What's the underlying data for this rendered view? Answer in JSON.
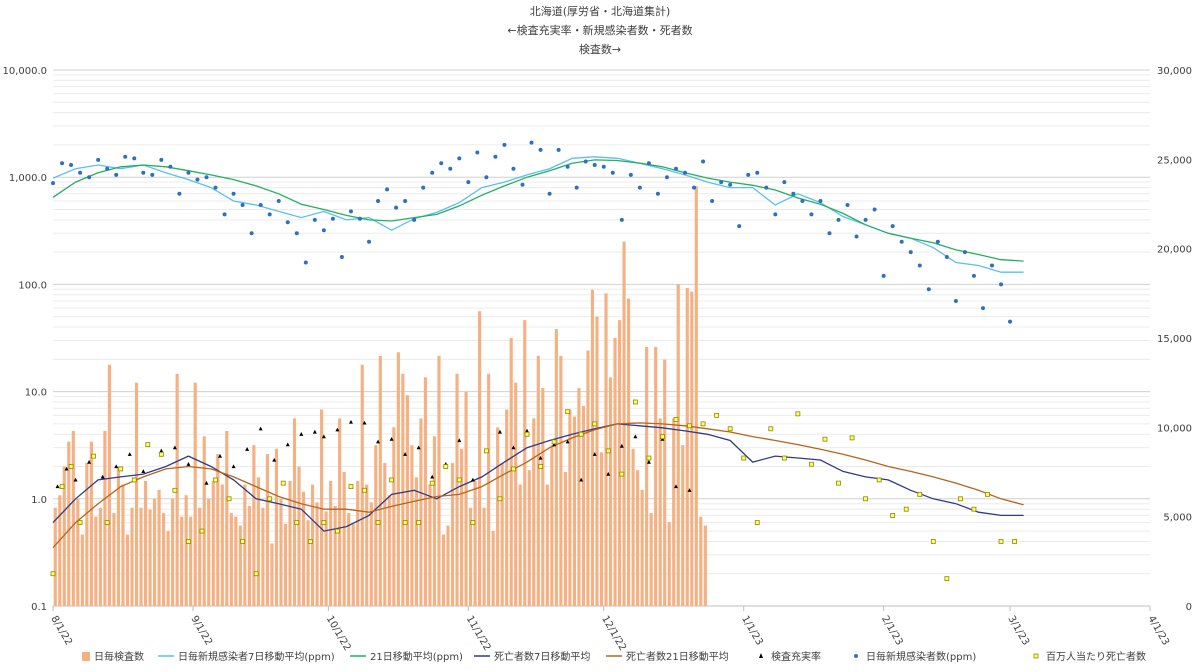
{
  "chart_data": {
    "type": "combo",
    "title_lines": [
      "北海道(厚労省・北海道集計)",
      "←検査充実率・新規感染者数・死者数",
      "検査数→"
    ],
    "y_left": {
      "scale": "log",
      "lim": [
        0.1,
        10000
      ],
      "ticks": [
        "0.1",
        "1.0",
        "10.0",
        "100.0",
        "1,000.0",
        "10,000.0"
      ],
      "tick_values": [
        0.1,
        1,
        10,
        100,
        1000,
        10000
      ]
    },
    "y_right": {
      "scale": "linear",
      "lim": [
        0,
        30000
      ],
      "ticks": [
        "0",
        "5,000",
        "10,000",
        "15,000",
        "20,000",
        "25,000",
        "30,000"
      ],
      "tick_values": [
        0,
        5000,
        10000,
        15000,
        20000,
        25000,
        30000
      ]
    },
    "x_axis": {
      "start": "2022-08-01",
      "end": "2023-04-01",
      "ticks": [
        "8/1/22",
        "9/1/22",
        "10/1/22",
        "11/1/22",
        "12/1/22",
        "1/1/23",
        "2/1/23",
        "3/1/23",
        "4/1/23"
      ],
      "tick_days": [
        0,
        31,
        61,
        92,
        122,
        153,
        184,
        212,
        243
      ]
    },
    "grid": true,
    "legend_position": "bottom",
    "series": [
      {
        "name": "日毎検査数",
        "type": "bar",
        "axis": "right",
        "color": "#f4b183",
        "values": [
          5500,
          6200,
          7800,
          9200,
          9800,
          6000,
          4000,
          8000,
          9200,
          5000,
          5500,
          9800,
          13500,
          5200,
          7800,
          6800,
          4000,
          5500,
          12500,
          5500,
          7000,
          5400,
          6000,
          6500,
          5200,
          4200,
          6000,
          13000,
          5000,
          6200,
          5000,
          12500,
          5500,
          9500,
          6000,
          7000,
          8500,
          6800,
          9800,
          5200,
          5000,
          4500,
          6800,
          5600,
          9000,
          7200,
          5500,
          8500,
          3500,
          8800,
          6000,
          4600,
          7000,
          10500,
          7800,
          6400,
          4800,
          6800,
          5800,
          11000,
          5300,
          7000,
          5600,
          10500,
          7500,
          5200,
          4600,
          7000,
          13500,
          6800,
          5800,
          9000,
          14000,
          8000,
          6200,
          10000,
          14200,
          13000,
          11800,
          9000,
          7200,
          10500,
          12800,
          6800,
          9500,
          14000,
          4000,
          4500,
          8000,
          13000,
          8800,
          12000,
          5500,
          7000,
          16500,
          5500,
          13000,
          4200,
          10000,
          8000,
          11000,
          15000,
          12500,
          6800,
          16000,
          7600,
          10500,
          14000,
          12200,
          6800,
          9000,
          15500,
          14000,
          7500,
          11000,
          10600,
          12200,
          11200,
          14300,
          17700,
          16200,
          8600,
          17500,
          12800,
          15000,
          16000,
          20400,
          17200,
          8800,
          7600,
          6500,
          14500,
          5200,
          14500,
          10500,
          13800,
          4700,
          10500,
          18000,
          9000,
          17800,
          17600,
          23500,
          5000,
          4500
        ]
      },
      {
        "name": "日毎新規感染者7日移動平均(ppm)",
        "type": "line",
        "axis": "left",
        "color": "#5bc0eb",
        "x": [
          0,
          5,
          10,
          15,
          20,
          25,
          30,
          35,
          40,
          45,
          50,
          55,
          60,
          65,
          70,
          75,
          80,
          85,
          90,
          95,
          100,
          105,
          110,
          115,
          120,
          125,
          130,
          135,
          140,
          145,
          150,
          155,
          160,
          165,
          170,
          175,
          180,
          185,
          190,
          195,
          200,
          205,
          210,
          215
        ],
        "values": [
          980,
          1200,
          1300,
          1200,
          1300,
          1100,
          950,
          800,
          600,
          550,
          480,
          420,
          480,
          400,
          420,
          320,
          410,
          470,
          580,
          800,
          900,
          1050,
          1200,
          1500,
          1550,
          1500,
          1350,
          1200,
          1050,
          900,
          800,
          800,
          550,
          700,
          580,
          430,
          360,
          300,
          270,
          220,
          160,
          150,
          130,
          130
        ]
      },
      {
        "name": "21日移動平均(ppm)",
        "type": "line",
        "axis": "left",
        "color": "#27ae60",
        "x": [
          0,
          5,
          10,
          15,
          20,
          25,
          30,
          35,
          40,
          45,
          50,
          55,
          60,
          65,
          70,
          75,
          80,
          85,
          90,
          95,
          100,
          105,
          110,
          115,
          120,
          125,
          130,
          135,
          140,
          145,
          150,
          155,
          160,
          165,
          170,
          175,
          180,
          185,
          190,
          195,
          200,
          205,
          210,
          215
        ],
        "values": [
          650,
          900,
          1100,
          1250,
          1300,
          1250,
          1150,
          1050,
          950,
          830,
          700,
          560,
          500,
          440,
          400,
          390,
          420,
          450,
          540,
          680,
          830,
          1000,
          1150,
          1350,
          1450,
          1430,
          1350,
          1250,
          1100,
          980,
          900,
          840,
          760,
          640,
          560,
          460,
          360,
          300,
          270,
          245,
          210,
          190,
          170,
          165
        ]
      },
      {
        "name": "死亡者数7日移動平均",
        "type": "line",
        "axis": "left",
        "color": "#2e3b8a",
        "x": [
          0,
          5,
          10,
          15,
          20,
          25,
          30,
          35,
          40,
          45,
          50,
          55,
          60,
          65,
          70,
          75,
          80,
          85,
          90,
          95,
          100,
          105,
          110,
          115,
          120,
          125,
          130,
          135,
          140,
          145,
          150,
          155,
          160,
          165,
          170,
          175,
          180,
          185,
          190,
          195,
          200,
          205,
          210,
          215
        ],
        "values": [
          0.6,
          1.0,
          1.5,
          1.6,
          1.7,
          2.0,
          2.5,
          2.0,
          1.5,
          1.0,
          0.9,
          0.8,
          0.5,
          0.55,
          0.7,
          1.1,
          1.2,
          1.0,
          1.3,
          1.6,
          2.2,
          3.0,
          3.5,
          4.0,
          4.5,
          5.0,
          4.8,
          4.6,
          4.3,
          4.0,
          3.5,
          2.2,
          2.5,
          2.4,
          2.3,
          1.8,
          1.6,
          1.5,
          1.2,
          1.0,
          0.9,
          0.75,
          0.7,
          0.7
        ]
      },
      {
        "name": "死亡者数21日移動平均",
        "type": "line",
        "axis": "left",
        "color": "#b5651d",
        "x": [
          0,
          5,
          10,
          15,
          20,
          25,
          30,
          35,
          40,
          45,
          50,
          55,
          60,
          65,
          70,
          75,
          80,
          85,
          90,
          95,
          100,
          105,
          110,
          115,
          120,
          125,
          130,
          135,
          140,
          145,
          150,
          155,
          160,
          165,
          170,
          175,
          180,
          185,
          190,
          195,
          200,
          205,
          210,
          215
        ],
        "values": [
          0.35,
          0.6,
          0.9,
          1.3,
          1.6,
          1.9,
          2.0,
          1.9,
          1.6,
          1.3,
          1.05,
          0.9,
          0.8,
          0.8,
          0.75,
          0.85,
          0.95,
          1.05,
          1.1,
          1.3,
          1.7,
          2.2,
          3.0,
          3.7,
          4.4,
          5.0,
          5.1,
          5.0,
          4.8,
          4.5,
          4.2,
          3.8,
          3.5,
          3.2,
          2.9,
          2.6,
          2.3,
          2.0,
          1.8,
          1.6,
          1.4,
          1.2,
          1.0,
          0.88
        ]
      },
      {
        "name": "検査充実率",
        "type": "scatter",
        "axis": "left",
        "color": "#000000",
        "marker": "triangle",
        "x": [
          1,
          3,
          5,
          8,
          11,
          14,
          17,
          20,
          24,
          27,
          30,
          34,
          37,
          40,
          43,
          46,
          49,
          52,
          55,
          58,
          60,
          63,
          66,
          69,
          72,
          75,
          78,
          81,
          84,
          87,
          90,
          93,
          96,
          99,
          102,
          105,
          108,
          111,
          114,
          117,
          120,
          123,
          126,
          129,
          132,
          135,
          138,
          141
        ],
        "values": [
          1.3,
          1.9,
          1.5,
          2.2,
          1.6,
          2.0,
          2.6,
          1.8,
          2.8,
          3.0,
          2.1,
          1.4,
          2.5,
          2.0,
          2.9,
          4.5,
          2.3,
          3.2,
          4.0,
          4.2,
          3.8,
          4.4,
          5.2,
          5.1,
          3.4,
          3.6,
          2.6,
          3.0,
          1.6,
          2.1,
          3.5,
          1.5,
          2.8,
          4.2,
          3.0,
          4.3,
          2.4,
          3.2,
          3.4,
          1.5,
          2.6,
          1.7,
          3.1,
          3.8,
          2.2,
          3.6,
          1.3,
          1.2
        ]
      },
      {
        "name": "日毎新規感染者数(ppm)",
        "type": "scatter",
        "axis": "left",
        "color": "#2f6fc1",
        "marker": "circle",
        "x": [
          0,
          2,
          4,
          6,
          8,
          10,
          12,
          14,
          16,
          18,
          20,
          22,
          24,
          26,
          28,
          30,
          32,
          34,
          36,
          38,
          40,
          42,
          44,
          46,
          48,
          50,
          52,
          54,
          56,
          58,
          60,
          62,
          64,
          66,
          68,
          70,
          72,
          74,
          76,
          78,
          80,
          82,
          84,
          86,
          88,
          90,
          92,
          94,
          96,
          98,
          100,
          102,
          104,
          106,
          108,
          110,
          112,
          114,
          116,
          118,
          120,
          122,
          124,
          126,
          128,
          130,
          132,
          134,
          136,
          138,
          140,
          142,
          144,
          146,
          148,
          150,
          152,
          154,
          156,
          158,
          160,
          162,
          164,
          166,
          168,
          170,
          172,
          174,
          176,
          178,
          180,
          182,
          184,
          186,
          188,
          190,
          192,
          194,
          196,
          198,
          200,
          202,
          204,
          206,
          208,
          210,
          212
        ],
        "values": [
          880,
          1350,
          1300,
          1100,
          1000,
          1450,
          1200,
          1050,
          1550,
          1500,
          1100,
          1050,
          1450,
          1250,
          700,
          1100,
          950,
          1000,
          800,
          450,
          700,
          550,
          300,
          550,
          450,
          600,
          380,
          300,
          160,
          400,
          320,
          410,
          180,
          480,
          410,
          250,
          600,
          770,
          520,
          600,
          400,
          800,
          1100,
          1350,
          1200,
          1500,
          900,
          1700,
          1000,
          1550,
          2000,
          1200,
          850,
          2100,
          1800,
          700,
          1800,
          1250,
          800,
          1400,
          1300,
          1250,
          1100,
          400,
          1050,
          800,
          1350,
          700,
          1000,
          1200,
          1100,
          800,
          1400,
          600,
          900,
          850,
          350,
          1050,
          1100,
          800,
          450,
          900,
          700,
          600,
          450,
          600,
          300,
          400,
          550,
          280,
          400,
          500,
          120,
          350,
          250,
          200,
          150,
          90,
          250,
          180,
          70,
          200,
          120,
          60,
          150,
          100,
          45
        ]
      },
      {
        "name": "百万人当たり死亡者数",
        "type": "scatter",
        "axis": "left",
        "color": "#c8c800",
        "marker": "square",
        "x": [
          0,
          2,
          4,
          6,
          9,
          12,
          15,
          18,
          21,
          24,
          27,
          30,
          33,
          36,
          39,
          42,
          45,
          48,
          51,
          54,
          57,
          60,
          63,
          66,
          69,
          72,
          75,
          78,
          81,
          84,
          87,
          90,
          93,
          96,
          99,
          102,
          105,
          108,
          111,
          114,
          117,
          120,
          123,
          126,
          129,
          132,
          135,
          138,
          141,
          144,
          147,
          150,
          153,
          156,
          159,
          162,
          165,
          168,
          171,
          174,
          177,
          180,
          183,
          186,
          189,
          192,
          195,
          198,
          201,
          204,
          207,
          210,
          213
        ],
        "values": [
          0.2,
          1.3,
          2.0,
          0.6,
          2.5,
          0.6,
          1.9,
          1.5,
          3.2,
          2.6,
          1.2,
          0.4,
          0.5,
          1.5,
          1.0,
          0.4,
          0.2,
          1.0,
          1.4,
          0.6,
          0.4,
          0.6,
          0.5,
          1.3,
          1.2,
          0.6,
          1.5,
          0.6,
          0.6,
          1.4,
          2.0,
          1.5,
          0.6,
          2.8,
          1.0,
          1.9,
          4.0,
          2.0,
          3.4,
          6.5,
          4.0,
          5.0,
          2.8,
          1.7,
          8.0,
          2.4,
          3.8,
          5.5,
          4.8,
          5.0,
          6.0,
          4.5,
          2.4,
          0.6,
          4.5,
          2.4,
          6.2,
          2.1,
          3.6,
          1.4,
          3.7,
          1.0,
          1.5,
          0.7,
          0.8,
          1.1,
          0.4,
          0.18,
          1.0,
          0.8,
          1.1,
          0.4,
          0.4
        ]
      }
    ]
  }
}
